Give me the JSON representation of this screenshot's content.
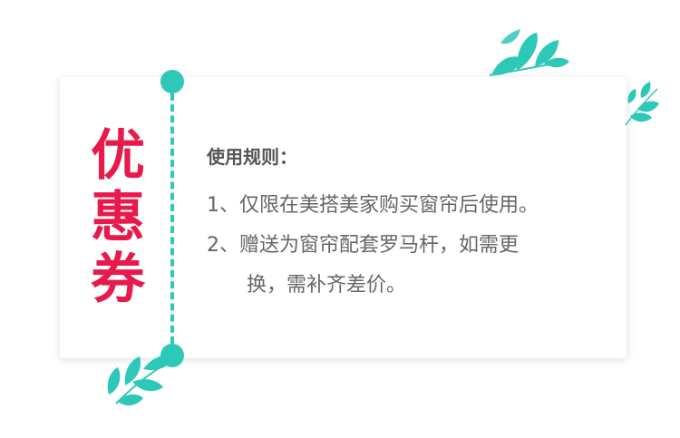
{
  "coupon": {
    "title_chars": [
      "优",
      "惠",
      "券"
    ],
    "rules_heading": "使用规则：",
    "rules": [
      {
        "lines": [
          "1、仅限在美搭美家购买窗帘后使用。"
        ]
      },
      {
        "lines": [
          "2、赠送为窗帘配套罗马杆，如需更",
          "换，需补齐差价。"
        ]
      }
    ]
  },
  "colors": {
    "accent_red": "#e8194b",
    "accent_teal": "#2ec8b9",
    "text_gray": "#666666"
  },
  "icons": [
    "leaf-branch-icon",
    "leaf-sprig-icon",
    "leaf-branch-bottom-icon"
  ]
}
